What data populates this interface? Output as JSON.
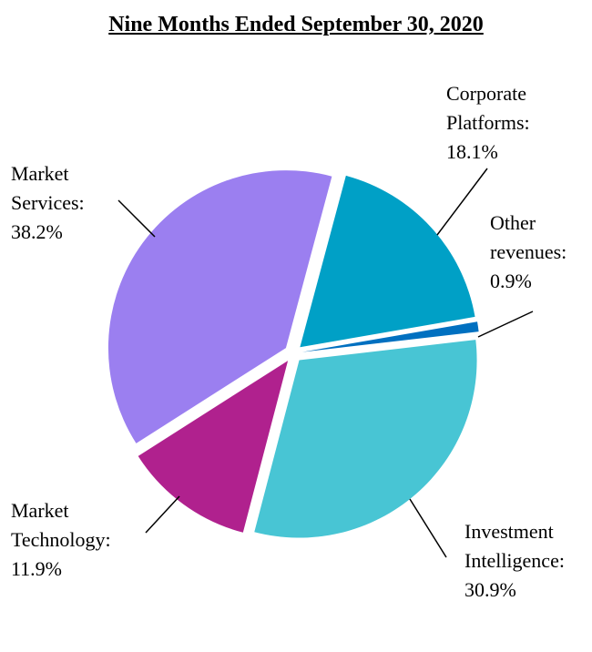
{
  "chart_data": {
    "type": "pie",
    "title": "Nine Months Ended September 30, 2020",
    "categories": [
      "Corporate Platforms:",
      "Other revenues:",
      "Investment Intelligence:",
      "Market Technology:",
      "Market Services:"
    ],
    "values": [
      18.1,
      0.9,
      30.9,
      11.9,
      38.2
    ],
    "value_labels": [
      "18.1%",
      "0.9%",
      "30.9%",
      "11.9%",
      "38.2%"
    ],
    "colors": [
      "#00a0c6",
      "#0070c0",
      "#48c5d4",
      "#b0218e",
      "#9b7ff0"
    ]
  }
}
